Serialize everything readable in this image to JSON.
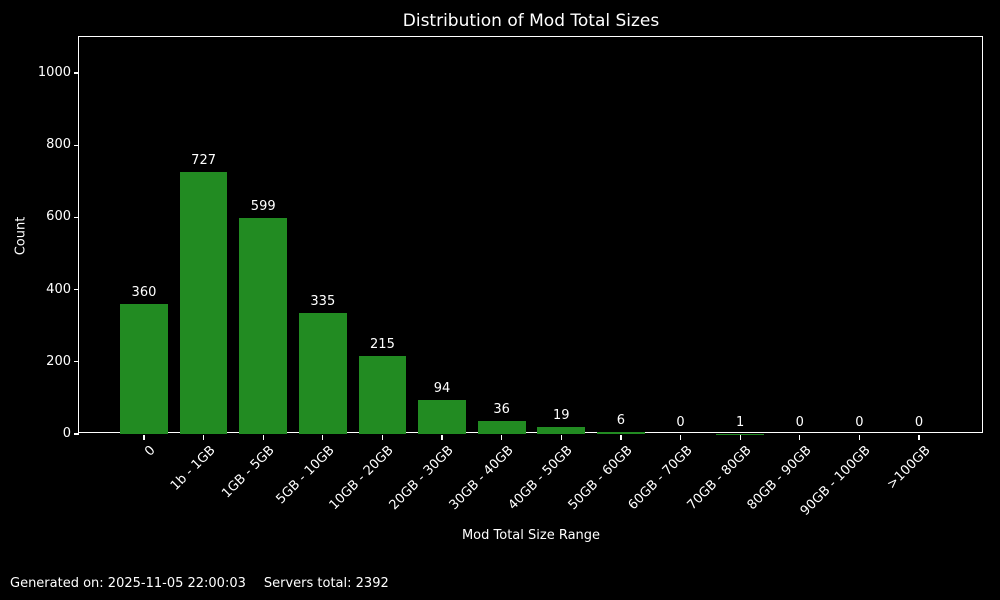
{
  "page": {
    "title": "Distribution of Mod Total Sizes",
    "footer": {
      "generated": "Generated on: 2025-11-05 22:00:03",
      "servers_total": "Servers total: 2392"
    }
  },
  "chart_data": {
    "type": "bar",
    "title": "Distribution of Mod Total Sizes",
    "xlabel": "Mod Total Size Range",
    "ylabel": "Count",
    "categories": [
      "0",
      "1b - 1GB",
      "1GB - 5GB",
      "5GB - 10GB",
      "10GB - 20GB",
      "20GB - 30GB",
      "30GB - 40GB",
      "40GB - 50GB",
      "50GB - 60GB",
      "60GB - 70GB",
      "70GB - 80GB",
      "80GB - 90GB",
      "90GB - 100GB",
      ">100GB"
    ],
    "values": [
      360,
      727,
      599,
      335,
      215,
      94,
      36,
      19,
      6,
      0,
      1,
      0,
      0,
      0
    ],
    "yticks": [
      0,
      200,
      400,
      600,
      800,
      1000
    ],
    "ylim": [
      0,
      1100
    ],
    "grid": false,
    "legend": "none",
    "bar_color": "#228B22",
    "background_color": "#000000",
    "text_color": "#ffffff",
    "x_tick_rotation_deg": 45
  }
}
